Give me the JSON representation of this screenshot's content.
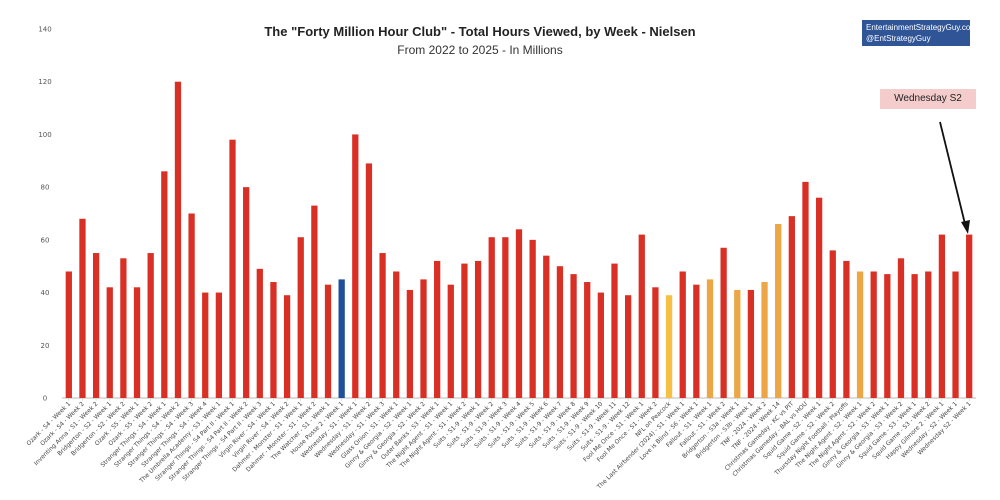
{
  "chart_data": {
    "type": "bar",
    "title": "The \"Forty Million Hour Club\" - Total Hours Viewed, by Week - Nielsen",
    "subtitle": "From 2022 to 2025 - In Millions",
    "xlabel": "",
    "ylabel": "",
    "ylim": [
      0,
      140
    ],
    "yticks": [
      0,
      20,
      40,
      60,
      80,
      100,
      120,
      140
    ],
    "grid": false,
    "categories": [
      "Ozark - S4 - Week 1",
      "Ozark - S4 - Week 2",
      "Inventing Anna - S1 - Week 2",
      "Bridgerton - S2 - Week 1",
      "Bridgerton - S2 - Week 2",
      "Ozark - S5 - Week 1",
      "Ozark - S5 - Week 2",
      "Stranger Things - S4 - Week 1",
      "Stranger Things - S4 - Week 2",
      "Stranger Things - S4 - Week 3",
      "Stranger Things - S4 - Week 4",
      "The Umbrella Academy - S3 - Week 1",
      "Stranger Things - S4 Part II - Week 1",
      "Stranger Things - S4 Part II - Week 2",
      "Stranger Things - S4 Part II - Week 3",
      "Virgin River - S4 - Week 1",
      "Virgin River - S4 - Week 2",
      "Dahmer - Monster - S1 - Week 1",
      "Dahmer - Monster - S1 - Week 2",
      "The Watcher - S1 - Week 1",
      "House Posse 2 - Week 1",
      "Wednesday - S1 - Week 1",
      "Wednesday - S1 - Week 2",
      "Wednesday - S1 - Week 3",
      "Glass Onion - S1 - Week 1",
      "Ginny & Georgia - S2 - Week 1",
      "Ginny & Georgia - S2 - Week 2",
      "Outer Banks - S3 - Week 1",
      "The Night Agent - S1 - Week 1",
      "The Night Agent - S1 - Week 2",
      "Suits - S1-9 - Week 1",
      "Suits - S1-9 - Week 2",
      "Suits - S1-9 - Week 3",
      "Suits - S1-9 - Week 4",
      "Suits - S1-9 - Week 5",
      "Suits - S1-9 - Week 6",
      "Suits - S1-9 - Week 7",
      "Suits - S1-9 - Week 8",
      "Suits - S1-9 - Week 9",
      "Suits - S1-9 - Week 10",
      "Suits - S1-9 - Week 11",
      "Suits - S1-9 - Week 12",
      "Fool Me Once - S1 - Week 1",
      "Fool Me Once - S1 - Week 2",
      "NFL on Peacock",
      "The Last Airbender (2024) - S1 - Week 1",
      "Love is Blind - S6 - Week 1",
      "Fallout - S1 - Week 1",
      "Fallout - S1 - Week 2",
      "Bridgerton - S3a - Week 1",
      "Bridgerton - S3b - Week 1",
      "TNF - 2024 - Week 2",
      "TNF - 2024 - Week 14",
      "Christmas Gameday - KC vs PIT",
      "Christmas Gameday - BAL vs HOU",
      "Squid Game - S2 - Week 1",
      "Squid Game - S2 - Week 2",
      "Thursday Night Football - Playoffs",
      "The Night Agent - S2 - Week 1",
      "The Night Agent - S2 - Week 2",
      "Ginny & Georgia - S3 - Week 1",
      "Ginny & Georgia - S3 - Week 2",
      "Squid Game - S3 - Week 1",
      "Squid Game - S3 - Week 2",
      "Happy Gilmore 2 - Week 1",
      "Wednesday - S2 - Week 1",
      "Wednesday S2 - Week 1"
    ],
    "values": [
      48,
      68,
      55,
      42,
      53,
      42,
      55,
      86,
      120,
      70,
      40,
      40,
      98,
      80,
      49,
      44,
      39,
      61,
      73,
      43,
      45,
      100,
      89,
      55,
      48,
      41,
      45,
      52,
      43,
      51,
      52,
      61,
      61,
      64,
      60,
      54,
      50,
      47,
      44,
      40,
      51,
      39,
      62,
      42,
      39,
      48,
      43,
      45,
      57,
      41,
      41,
      44,
      66,
      69,
      82,
      76,
      56,
      52,
      48,
      48,
      47,
      53,
      47,
      48,
      62,
      48,
      62
    ],
    "bar_colors": {
      "default": "#d93025",
      "blue": "#1f4e9a",
      "yellow": "#f6c142",
      "orange": "#eca646"
    },
    "highlight": {
      "blue_index": 20,
      "yellow_indices": [
        44
      ],
      "orange_indices": [
        47,
        49,
        51,
        52,
        58
      ]
    },
    "annotations": {
      "brand_line1": "EntertainmentStrategyGuy.com",
      "brand_line2": "@EntStrategyGuy",
      "callout": "Wednesday S2"
    }
  }
}
